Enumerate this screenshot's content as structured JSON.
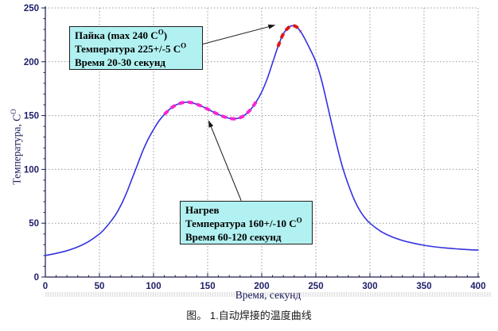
{
  "page": {
    "background": "#ffffff",
    "caption": "图。 1.自动焊接的温度曲线"
  },
  "chart_data": {
    "type": "line",
    "title": "",
    "xlabel": {
      "pre": "Время, секунд",
      "sup": "",
      "post": ""
    },
    "ylabel": {
      "pre": "Температура, C",
      "sup": "O",
      "post": ""
    },
    "xlim": [
      0,
      400
    ],
    "ylim": [
      0,
      250
    ],
    "x_ticks": [
      0,
      50,
      100,
      150,
      200,
      250,
      300,
      350,
      400
    ],
    "y_ticks": [
      0,
      50,
      100,
      150,
      200,
      250
    ],
    "minor_tick_step": 10,
    "grid": true,
    "legend": "none",
    "axis_color": "#1c1c50",
    "tick_label_color": "#20206a",
    "grid_color": "#999999",
    "series": [
      {
        "name": "temperature-profile",
        "color": "#3232e0",
        "points": [
          [
            0,
            20
          ],
          [
            10,
            22
          ],
          [
            20,
            24.5
          ],
          [
            30,
            28
          ],
          [
            40,
            33
          ],
          [
            50,
            40
          ],
          [
            55,
            45
          ],
          [
            60,
            51
          ],
          [
            65,
            58
          ],
          [
            70,
            67
          ],
          [
            75,
            78
          ],
          [
            80,
            91
          ],
          [
            85,
            104
          ],
          [
            90,
            117
          ],
          [
            95,
            128
          ],
          [
            100,
            137
          ],
          [
            105,
            145
          ],
          [
            110,
            151
          ],
          [
            115,
            156
          ],
          [
            120,
            159.5
          ],
          [
            125,
            161.5
          ],
          [
            130,
            162.5
          ],
          [
            135,
            162
          ],
          [
            140,
            160.5
          ],
          [
            145,
            158.5
          ],
          [
            150,
            156
          ],
          [
            155,
            153.5
          ],
          [
            160,
            151
          ],
          [
            165,
            149
          ],
          [
            170,
            147.5
          ],
          [
            175,
            147
          ],
          [
            180,
            148
          ],
          [
            185,
            151
          ],
          [
            190,
            156
          ],
          [
            195,
            163
          ],
          [
            200,
            172
          ],
          [
            205,
            184
          ],
          [
            210,
            199
          ],
          [
            215,
            214
          ],
          [
            220,
            226
          ],
          [
            225,
            232
          ],
          [
            228,
            233.5
          ],
          [
            232,
            232.5
          ],
          [
            236,
            228
          ],
          [
            240,
            221
          ],
          [
            245,
            211
          ],
          [
            250,
            200
          ],
          [
            255,
            184
          ],
          [
            260,
            163
          ],
          [
            265,
            141
          ],
          [
            270,
            120
          ],
          [
            275,
            101
          ],
          [
            280,
            86
          ],
          [
            285,
            73
          ],
          [
            290,
            63
          ],
          [
            295,
            55.5
          ],
          [
            300,
            50
          ],
          [
            310,
            42.5
          ],
          [
            320,
            37.5
          ],
          [
            330,
            34
          ],
          [
            340,
            31.5
          ],
          [
            350,
            29.5
          ],
          [
            360,
            28
          ],
          [
            370,
            27
          ],
          [
            380,
            26.2
          ],
          [
            390,
            25.5
          ],
          [
            400,
            25
          ]
        ]
      }
    ],
    "highlights": [
      {
        "name": "heating-zone",
        "color": "#ff22cc",
        "t_start": 110,
        "t_end": 196
      },
      {
        "name": "soldering-zone",
        "color": "#e01616",
        "t_start": 213,
        "t_end": 237
      }
    ],
    "annotations": [
      {
        "id": "soldering",
        "lines": [
          {
            "pre": "Пайка (max 240 C",
            "sup": "O",
            "post": ")"
          },
          {
            "pre": "Температура 225+/-5 C",
            "sup": "O",
            "post": ""
          },
          {
            "pre": "Время 20-30 секунд",
            "sup": "",
            "post": ""
          }
        ],
        "box": {
          "bg": "#b2f1f1",
          "border": "#1f1f1f"
        },
        "arrow": {
          "from": [
            140,
            215
          ],
          "to": [
            212,
            234
          ]
        }
      },
      {
        "id": "heating",
        "lines": [
          {
            "pre": "Нагрев",
            "sup": "",
            "post": ""
          },
          {
            "pre": "Температура 160+/-10 C",
            "sup": "O",
            "post": ""
          },
          {
            "pre": "Время 60-120 секунд",
            "sup": "",
            "post": ""
          }
        ],
        "box": {
          "bg": "#b2f1f1",
          "border": "#1f1f1f"
        },
        "arrow": {
          "from": [
            181,
            71
          ],
          "to": [
            151,
            145
          ]
        }
      }
    ]
  }
}
